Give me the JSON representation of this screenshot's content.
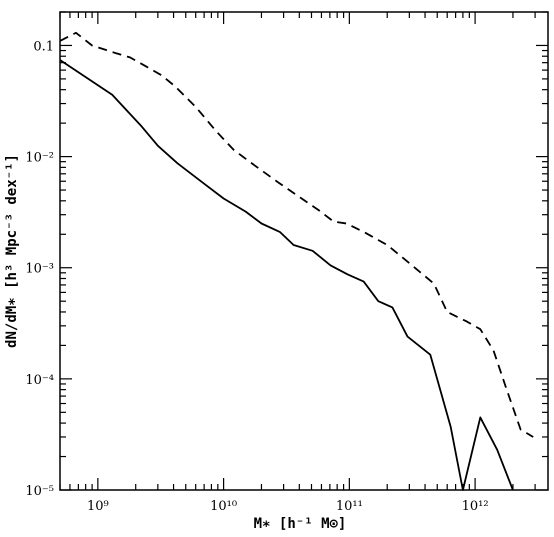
{
  "chart_data": {
    "type": "line",
    "title": "",
    "xlabel": "M∗ [h⁻¹ M⊙]",
    "ylabel": "dN/dM∗ [h³ Mpc⁻³ dex⁻¹]",
    "xscale": "log",
    "yscale": "log",
    "xlim": [
      500000000.0,
      3800000000000.0
    ],
    "ylim": [
      1e-05,
      0.2
    ],
    "grid": false,
    "legend": "none",
    "x_ticks": [
      {
        "value": 1000000000.0,
        "label": "10⁹"
      },
      {
        "value": 10000000000.0,
        "label": "10¹⁰"
      },
      {
        "value": 100000000000.0,
        "label": "10¹¹"
      },
      {
        "value": 1000000000000.0,
        "label": "10¹²"
      }
    ],
    "y_ticks": [
      {
        "value": 1e-05,
        "label": "10⁻⁵"
      },
      {
        "value": 0.0001,
        "label": "10⁻⁴"
      },
      {
        "value": 0.001,
        "label": "10⁻³"
      },
      {
        "value": 0.01,
        "label": "10⁻²"
      },
      {
        "value": 0.1,
        "label": "0.1"
      }
    ],
    "series": [
      {
        "style": "solid",
        "color": "#000000",
        "x": [
          500000000.0,
          1300000000.0,
          2200000000.0,
          3000000000.0,
          4300000000.0,
          7000000000.0,
          10000000000.0,
          15000000000.0,
          20000000000.0,
          28000000000.0,
          36000000000.0,
          51000000000.0,
          71000000000.0,
          97000000000.0,
          130000000000.0,
          170000000000.0,
          220000000000.0,
          290000000000.0,
          440000000000.0,
          640000000000.0,
          800000000000.0,
          1100000000000.0,
          1500000000000.0,
          2000000000000.0
        ],
        "y": [
          0.074,
          0.036,
          0.019,
          0.0125,
          0.0087,
          0.0057,
          0.0042,
          0.0032,
          0.0025,
          0.0021,
          0.0016,
          0.00142,
          0.00105,
          0.00087,
          0.00075,
          0.0005,
          0.00044,
          0.00024,
          0.000165,
          3.7e-05,
          1e-05,
          4.5e-05,
          2.3e-05,
          1e-05
        ]
      },
      {
        "style": "dashed",
        "color": "#000000",
        "x": [
          500000000.0,
          670000000.0,
          900000000.0,
          1400000000.0,
          1800000000.0,
          2400000000.0,
          3200000000.0,
          4100000000.0,
          6000000000.0,
          8700000000.0,
          12000000000.0,
          18000000000.0,
          27000000000.0,
          36000000000.0,
          57000000000.0,
          75000000000.0,
          95000000000.0,
          130000000000.0,
          200000000000.0,
          300000000000.0,
          470000000000.0,
          600000000000.0,
          850000000000.0,
          1100000000000.0,
          1400000000000.0,
          1750000000000.0,
          2300000000000.0,
          2900000000000.0
        ],
        "y": [
          0.11,
          0.13,
          0.1,
          0.085,
          0.078,
          0.065,
          0.054,
          0.043,
          0.028,
          0.017,
          0.0115,
          0.0082,
          0.0059,
          0.0047,
          0.0033,
          0.0026,
          0.0025,
          0.0021,
          0.0016,
          0.0011,
          0.00072,
          0.0004,
          0.00033,
          0.00028,
          0.00018,
          8.5e-05,
          3.5e-05,
          3e-05
        ]
      }
    ]
  }
}
